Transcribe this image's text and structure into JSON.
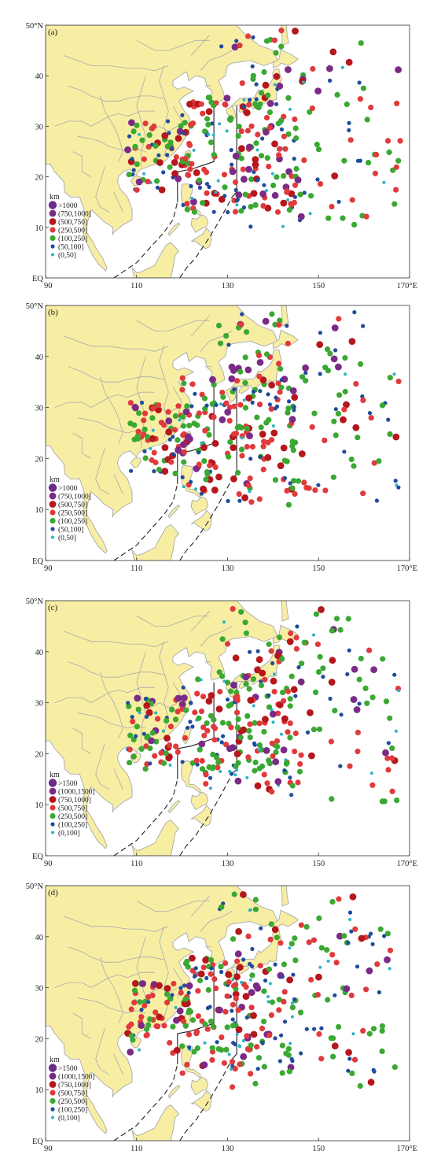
{
  "panels": [
    {
      "tag": "(a)",
      "legend_title": "km",
      "legend": [
        {
          "label": ">1000",
          "color": "#6a2d8a",
          "size": "xl"
        },
        {
          "label": "(750,1000]",
          "color": "#7b2a86",
          "size": "l"
        },
        {
          "label": "(500,750]",
          "color": "#b5171d",
          "size": "l"
        },
        {
          "label": "(250,500]",
          "color": "#e03a3c",
          "size": "m"
        },
        {
          "label": "(100,250]",
          "color": "#3aa832",
          "size": "m"
        },
        {
          "label": "(50,100]",
          "color": "#1f4c9c",
          "size": "s"
        },
        {
          "label": "(0,50]",
          "color": "#2ab3c8",
          "size": "xs"
        }
      ],
      "x_ticks": [
        "90",
        "110",
        "130",
        "150",
        "170°E"
      ],
      "y_ticks": [
        "EQ",
        "10",
        "20",
        "30",
        "40",
        "50°N"
      ]
    },
    {
      "tag": "(b)",
      "legend_title": "km",
      "legend": [
        {
          "label": ">1000",
          "color": "#6a2d8a",
          "size": "xl"
        },
        {
          "label": "(750,1000]",
          "color": "#7b2a86",
          "size": "l"
        },
        {
          "label": "(500,750]",
          "color": "#b5171d",
          "size": "l"
        },
        {
          "label": "(250,500]",
          "color": "#e03a3c",
          "size": "m"
        },
        {
          "label": "(100,250]",
          "color": "#3aa832",
          "size": "m"
        },
        {
          "label": "(50,100]",
          "color": "#1f4c9c",
          "size": "s"
        },
        {
          "label": "(0,50]",
          "color": "#2ab3c8",
          "size": "xs"
        }
      ],
      "x_ticks": [
        "90",
        "110",
        "130",
        "150",
        "170°E"
      ],
      "y_ticks": [
        "EQ",
        "10",
        "20",
        "30",
        "40",
        "50°N"
      ]
    },
    {
      "tag": "(c)",
      "legend_title": "km",
      "legend": [
        {
          "label": ">1500",
          "color": "#6a2d8a",
          "size": "xl"
        },
        {
          "label": "(1000,1500]",
          "color": "#7b2a86",
          "size": "l"
        },
        {
          "label": "(750,1000]",
          "color": "#b5171d",
          "size": "l"
        },
        {
          "label": "(500,750]",
          "color": "#e03a3c",
          "size": "m"
        },
        {
          "label": "(250,500]",
          "color": "#3aa832",
          "size": "m"
        },
        {
          "label": "(100,250]",
          "color": "#1f4c9c",
          "size": "s"
        },
        {
          "label": "(0,100]",
          "color": "#2ab3c8",
          "size": "xs"
        }
      ],
      "x_ticks": [
        "90",
        "110",
        "130",
        "150",
        "170°E"
      ],
      "y_ticks": [
        "EQ",
        "10",
        "20",
        "30",
        "40",
        "50°N"
      ]
    },
    {
      "tag": "(d)",
      "legend_title": "km",
      "legend": [
        {
          "label": ">1500",
          "color": "#6a2d8a",
          "size": "xl"
        },
        {
          "label": "(1000,1500]",
          "color": "#7b2a86",
          "size": "l"
        },
        {
          "label": "(750,1000]",
          "color": "#b5171d",
          "size": "l"
        },
        {
          "label": "(500,750]",
          "color": "#e03a3c",
          "size": "m"
        },
        {
          "label": "(250,500]",
          "color": "#3aa832",
          "size": "m"
        },
        {
          "label": "(100,250]",
          "color": "#1f4c9c",
          "size": "s"
        },
        {
          "label": "(0,100]",
          "color": "#2ab3c8",
          "size": "xs"
        }
      ],
      "x_ticks": [
        "90",
        "110",
        "130",
        "150",
        "170°E"
      ],
      "y_ticks": [
        "EQ",
        "10",
        "20",
        "30",
        "40",
        "50°N"
      ]
    }
  ],
  "colors": {
    "land": "#f7eea4",
    "ocean": "#ffffff",
    "border": "#a9a9a9",
    "frame": "#333333",
    "dashed": "#222222"
  }
}
